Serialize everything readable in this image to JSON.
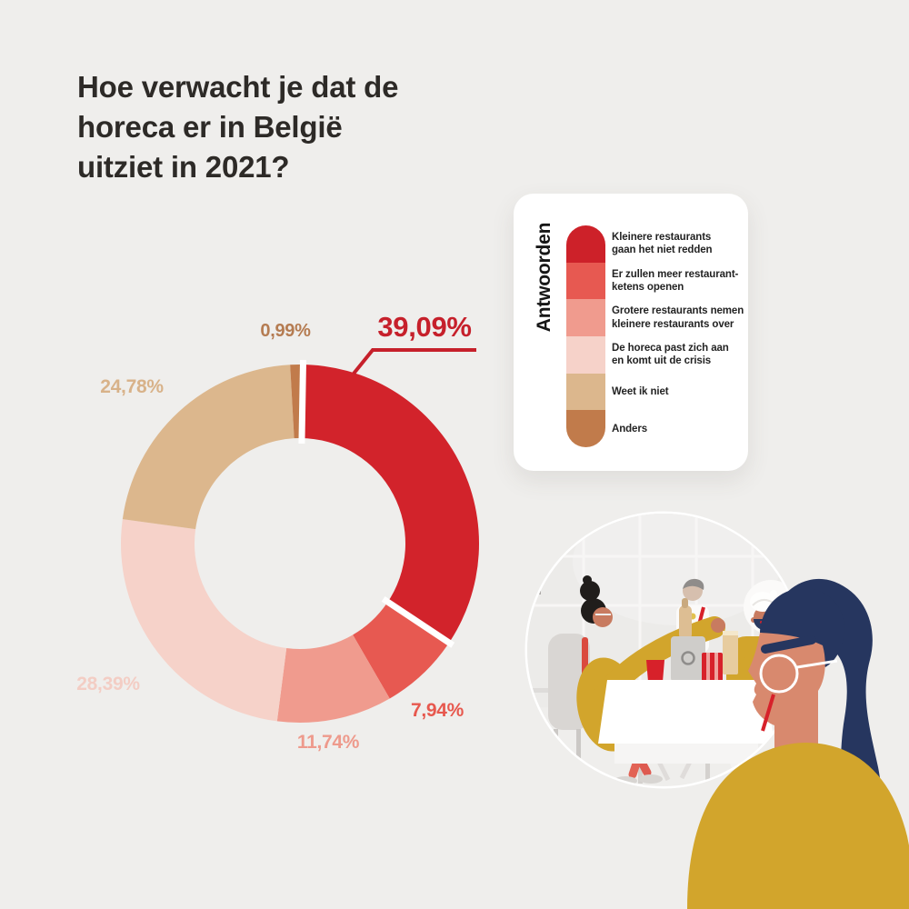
{
  "page": {
    "title": "Hoe verwacht je dat de\nhoreca er in België\nuitziet in 2021?",
    "title_color": "#2d2a27",
    "background_color": "#efeeec"
  },
  "legend": {
    "title": "Antwoorden",
    "card_color": "#ffffff",
    "items": [
      {
        "label": "Kleinere restaurants\ngaan het niet redden",
        "color": "#cd2129"
      },
      {
        "label": "Er zullen meer restaurant-\nketens openen",
        "color": "#e75951"
      },
      {
        "label": "Grotere restaurants nemen\nkleinere restaurants over",
        "color": "#f09b8e"
      },
      {
        "label": "De horeca past zich aan\nen komt uit de crisis",
        "color": "#f6d2c9"
      },
      {
        "label": "Weet ik niet",
        "color": "#dcb78d"
      },
      {
        "label": "Anders",
        "color": "#c17b4b"
      }
    ]
  },
  "chart_data": {
    "type": "pie",
    "subtype": "donut",
    "title": "Hoe verwacht je dat de horeca er in België uitziet in 2021?",
    "unit": "percent",
    "direction": "clockwise",
    "start_angle_deg_from_top": 0,
    "highlight_index": 0,
    "slices": [
      {
        "label": "Kleinere restaurants gaan het niet redden",
        "value": 39.09,
        "display": "39,09%",
        "color": "#d2232b",
        "label_color": "#c6202b"
      },
      {
        "label": "Er zullen meer restaurantketens openen",
        "value": 7.94,
        "display": "7,94%",
        "color": "#e75951",
        "label_color": "#e7584e"
      },
      {
        "label": "Grotere restaurants nemen kleinere restaurants over",
        "value": 11.74,
        "display": "11,74%",
        "color": "#f09b8e",
        "label_color": "#ee9a8c"
      },
      {
        "label": "De horeca past zich aan en komt uit de crisis",
        "value": 28.39,
        "display": "28,39%",
        "color": "#f6d2c9",
        "label_color": "#f3cdc4"
      },
      {
        "label": "Weet ik niet",
        "value": 24.78,
        "display": "24,78%",
        "color": "#dcb78d",
        "label_color": "#d8b289"
      },
      {
        "label": "Anders",
        "value": 0.99,
        "display": "0,99%",
        "color": "#c17b4b",
        "label_color": "#b57c52"
      }
    ]
  }
}
